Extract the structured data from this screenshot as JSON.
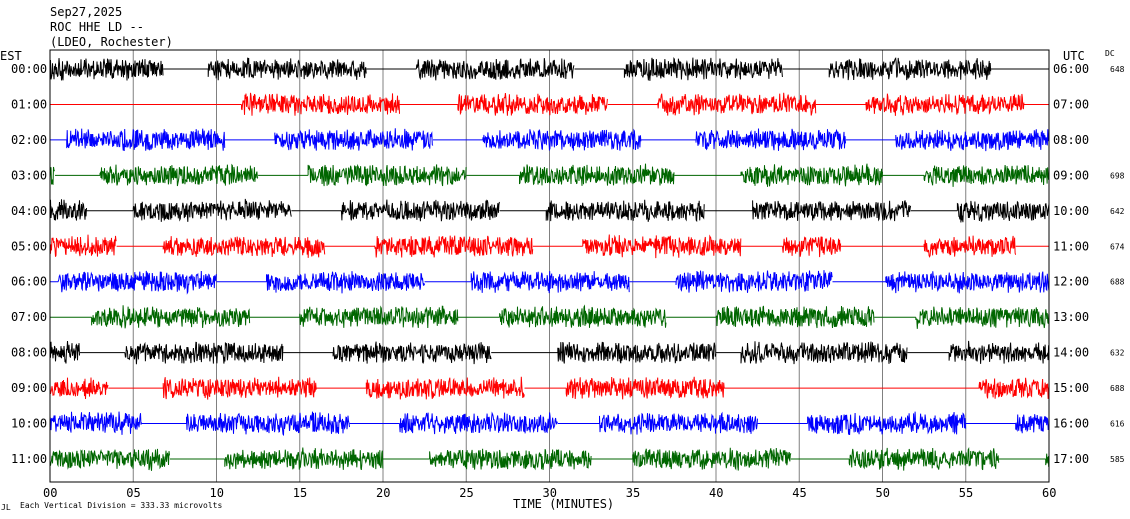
{
  "header": {
    "date": "Sep27,2025",
    "station": "ROC HHE LD --",
    "network": "(LDEO, Rochester)"
  },
  "chart_data": {
    "type": "helicorder",
    "left_timezone": "EST",
    "right_timezone": "UTC",
    "dc_label": "DC",
    "xlabel": "TIME (MINUTES)",
    "xlim": [
      0,
      60
    ],
    "x_ticks": [
      "00",
      "05",
      "10",
      "15",
      "20",
      "25",
      "30",
      "35",
      "40",
      "45",
      "50",
      "55",
      "60"
    ],
    "scale_text": "Each Vertical Division =  333.33 microvolts",
    "footer_mark": "JL",
    "trace_colors": [
      "#000000",
      "#ff0000",
      "#0000ff",
      "#006600"
    ],
    "rows": [
      {
        "left": "00:00",
        "right": "06:00",
        "dc": "648",
        "color": 0,
        "segments": [
          [
            0,
            6.8
          ],
          [
            9.5,
            19
          ],
          [
            22,
            31.5
          ],
          [
            34.5,
            44
          ],
          [
            46.8,
            56.5
          ]
        ]
      },
      {
        "left": "01:00",
        "right": "07:00",
        "dc": "",
        "color": 1,
        "segments": [
          [
            11.5,
            21
          ],
          [
            24.5,
            33.5
          ],
          [
            36.5,
            46
          ],
          [
            49,
            58.5
          ]
        ]
      },
      {
        "left": "02:00",
        "right": "08:00",
        "dc": "",
        "color": 2,
        "segments": [
          [
            1,
            10.5
          ],
          [
            13.5,
            23
          ],
          [
            26,
            35.5
          ],
          [
            38.8,
            47.8
          ],
          [
            50.8,
            60
          ]
        ]
      },
      {
        "left": "03:00",
        "right": "09:00",
        "dc": "698",
        "color": 3,
        "segments": [
          [
            0,
            0.3
          ],
          [
            3,
            12.5
          ],
          [
            15.5,
            25
          ],
          [
            28.2,
            37.5
          ],
          [
            41.5,
            50
          ],
          [
            52.5,
            60
          ]
        ]
      },
      {
        "left": "04:00",
        "right": "10:00",
        "dc": "642",
        "color": 0,
        "segments": [
          [
            0,
            2.2
          ],
          [
            5,
            14.5
          ],
          [
            17.5,
            27
          ],
          [
            29.8,
            39.3
          ],
          [
            42.2,
            51.7
          ],
          [
            54.5,
            60
          ]
        ]
      },
      {
        "left": "05:00",
        "right": "11:00",
        "dc": "674",
        "color": 1,
        "segments": [
          [
            0,
            4
          ],
          [
            6.8,
            16.5
          ],
          [
            19.5,
            29
          ],
          [
            32,
            41.5
          ],
          [
            44,
            47.5
          ],
          [
            52.5,
            58
          ]
        ]
      },
      {
        "left": "06:00",
        "right": "12:00",
        "dc": "688",
        "color": 2,
        "segments": [
          [
            0.5,
            10
          ],
          [
            13,
            22.5
          ],
          [
            25.3,
            34.8
          ],
          [
            37.6,
            47
          ],
          [
            50.2,
            60
          ]
        ]
      },
      {
        "left": "07:00",
        "right": "13:00",
        "dc": "",
        "color": 3,
        "segments": [
          [
            2.5,
            12
          ],
          [
            15,
            24.5
          ],
          [
            27,
            37
          ],
          [
            40,
            49.5
          ],
          [
            52,
            60
          ]
        ]
      },
      {
        "left": "08:00",
        "right": "14:00",
        "dc": "632",
        "color": 0,
        "segments": [
          [
            0,
            1.8
          ],
          [
            4.5,
            14
          ],
          [
            17,
            26.5
          ],
          [
            30.5,
            40
          ],
          [
            41.5,
            51.5
          ],
          [
            54,
            60
          ]
        ]
      },
      {
        "left": "09:00",
        "right": "15:00",
        "dc": "688",
        "color": 1,
        "segments": [
          [
            0,
            3.5
          ],
          [
            6.8,
            16
          ],
          [
            19,
            28.5
          ],
          [
            31,
            40.5
          ],
          [
            55.8,
            60
          ]
        ]
      },
      {
        "left": "10:00",
        "right": "16:00",
        "dc": "616",
        "color": 2,
        "segments": [
          [
            0,
            5.5
          ],
          [
            8.2,
            18
          ],
          [
            21,
            30.5
          ],
          [
            33,
            42.5
          ],
          [
            45.5,
            55
          ],
          [
            58,
            60
          ]
        ]
      },
      {
        "left": "11:00",
        "right": "17:00",
        "dc": "585",
        "color": 3,
        "segments": [
          [
            0,
            7.2
          ],
          [
            10.5,
            20
          ],
          [
            22.8,
            32.5
          ],
          [
            35,
            44.5
          ],
          [
            48,
            57
          ],
          [
            59.8,
            60
          ]
        ]
      }
    ],
    "grid": true
  }
}
